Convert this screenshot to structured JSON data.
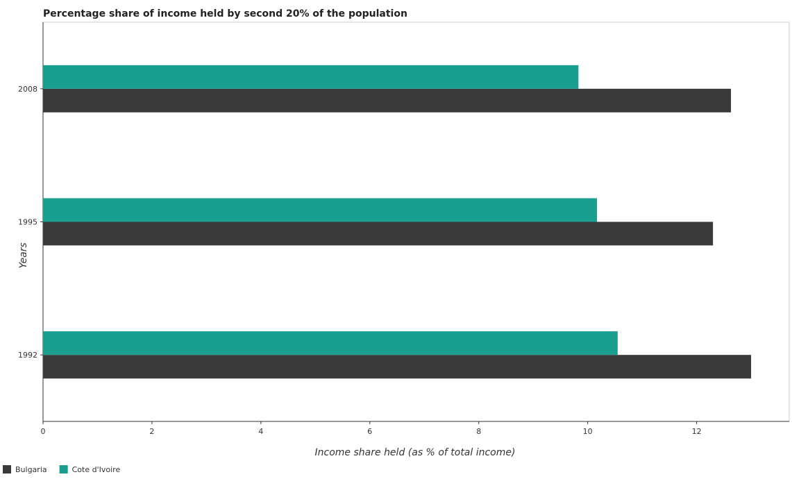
{
  "chart_data": {
    "type": "bar",
    "orientation": "horizontal",
    "title": "Percentage share of income held by second 20% of the population",
    "xlabel": "Income share held (as % of total income)",
    "ylabel": "Years",
    "categories": [
      "1992",
      "1995",
      "2008"
    ],
    "series": [
      {
        "name": "Bulgaria",
        "color": "#3a3a3a",
        "values": [
          13.0,
          12.3,
          12.63
        ]
      },
      {
        "name": "Cote d'Ivoire",
        "color": "#1a9e8f",
        "values": [
          10.55,
          10.17,
          9.83
        ]
      }
    ],
    "xlim": [
      0,
      13.7
    ],
    "xticks": [
      0,
      2,
      4,
      6,
      8,
      10,
      12
    ],
    "xtick_labels": [
      "0",
      "2",
      "4",
      "6",
      "8",
      "10",
      "12"
    ],
    "grid": false,
    "legend_position": "bottom-left"
  }
}
